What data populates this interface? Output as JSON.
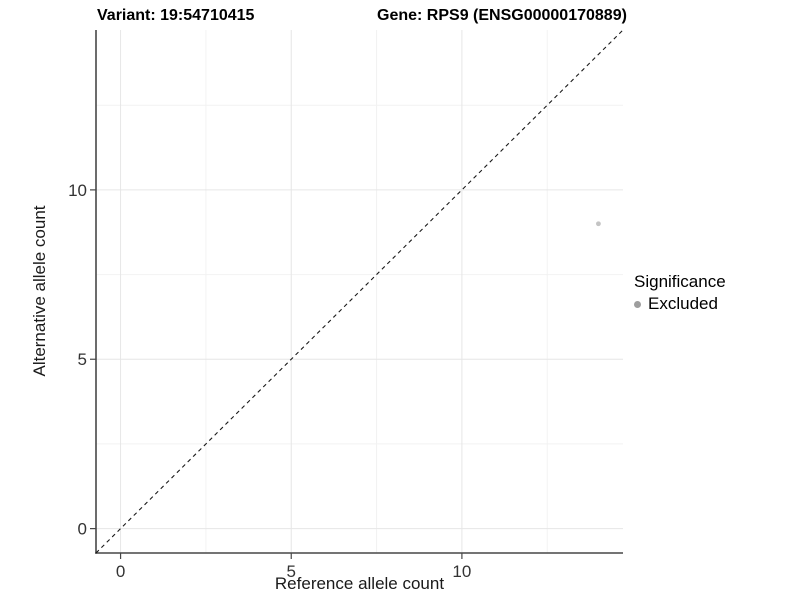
{
  "figure": {
    "background": "#ffffff"
  },
  "chart_data": {
    "type": "scatter",
    "titles": {
      "left": "Variant: 19:54710415",
      "right": "Gene: RPS9 (ENSG00000170889)"
    },
    "xlabel": "Reference allele count",
    "ylabel": "Alternative allele count",
    "xlim": [
      -0.72,
      14.72
    ],
    "ylim": [
      -0.72,
      14.72
    ],
    "x_ticks": [
      0,
      5,
      10
    ],
    "y_ticks": [
      0,
      5,
      10
    ],
    "x_minor_ticks": [
      2.5,
      7.5,
      12.5
    ],
    "y_minor_ticks": [
      2.5,
      7.5,
      12.5
    ],
    "grid": "major+minor",
    "series": [
      {
        "name": "Excluded",
        "color": "#c4c4c4",
        "point_size": 2.4,
        "points": [
          {
            "x": 14,
            "y": 9
          }
        ]
      }
    ],
    "reference_line": {
      "type": "identity",
      "slope": 1,
      "intercept": 0,
      "style": "dashed",
      "color": "#1a1a1a"
    },
    "legend": {
      "title": "Significance",
      "position": "right",
      "entries": [
        {
          "label": "Excluded",
          "marker": "circle",
          "color": "#9e9e9e"
        }
      ]
    },
    "colors": {
      "grid_major": "#e6e6e6",
      "grid_minor": "#f2f2f2",
      "axis_line": "#474747",
      "tick_label": "#333333",
      "title": "#000000"
    }
  }
}
